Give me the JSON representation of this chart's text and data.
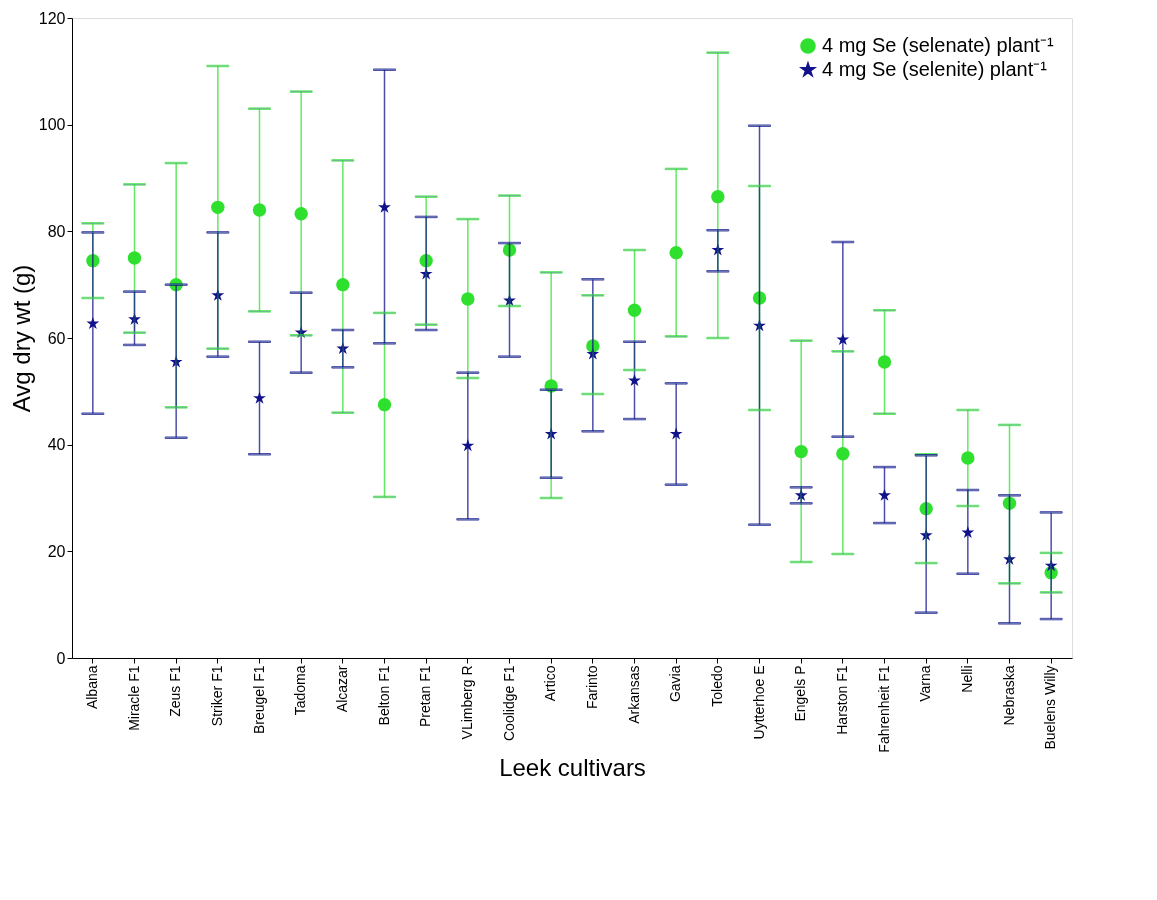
{
  "chart_data": {
    "type": "scatter",
    "xlabel": "Leek cultivars",
    "ylabel": "Avg dry wt (g)",
    "categories": [
      "Albana",
      "Miracle F1",
      "Zeus F1",
      "Striker F1",
      "Breugel F1",
      "Tadoma",
      "Alcazar",
      "Belton F1",
      "Pretan F1",
      "VLimberg R",
      "Coolidge F1",
      "Artico",
      "Farinto",
      "Arkansas",
      "Gavia",
      "Toledo",
      "Uytterhoe E",
      "Engels P",
      "Harston F1",
      "Fahrenheit F1",
      "Varna",
      "Nelli",
      "Nebraska",
      "Buelens Willy"
    ],
    "series": [
      {
        "name": "4 mg Se (selenate) plant⁻¹",
        "color": "#2fe02f",
        "marker": "circle",
        "values": [
          74.5,
          75,
          70,
          84.5,
          84,
          83.3,
          70,
          47.5,
          74.5,
          67.3,
          76.5,
          51,
          58.5,
          65.2,
          76,
          86.5,
          67.5,
          38.7,
          38.3,
          55.5,
          28,
          37.5,
          29,
          16
        ],
        "errors": [
          [
            67.5,
            81.5
          ],
          [
            61,
            88.8
          ],
          [
            47,
            92.8
          ],
          [
            58,
            111
          ],
          [
            65,
            103
          ],
          [
            60.5,
            106.2
          ],
          [
            46,
            93.3
          ],
          [
            30.2,
            64.7
          ],
          [
            62.5,
            86.5
          ],
          [
            52.5,
            82.3
          ],
          [
            66,
            86.7
          ],
          [
            30,
            72.3
          ],
          [
            49.5,
            68
          ],
          [
            54,
            76.5
          ],
          [
            60.3,
            91.7
          ],
          [
            60,
            113.5
          ],
          [
            46.5,
            88.5
          ],
          [
            18,
            59.5
          ],
          [
            19.5,
            57.5
          ],
          [
            45.8,
            65.2
          ],
          [
            17.8,
            38.2
          ],
          [
            28.5,
            46.5
          ],
          [
            14,
            43.7
          ],
          [
            12.3,
            19.7
          ]
        ]
      },
      {
        "name": "4 mg Se (selenite) plant⁻¹",
        "color": "#12128c",
        "marker": "star",
        "values": [
          62.7,
          63.5,
          55.5,
          68,
          48.7,
          61,
          58,
          84.5,
          72,
          39.8,
          67,
          42,
          57,
          52,
          42,
          76.5,
          62.3,
          30.5,
          59.7,
          30.5,
          23,
          23.5,
          18.5,
          17.3
        ],
        "errors": [
          [
            45.8,
            79.8
          ],
          [
            58.7,
            68.7
          ],
          [
            41.3,
            70
          ],
          [
            56.5,
            79.8
          ],
          [
            38.2,
            59.3
          ],
          [
            53.5,
            68.5
          ],
          [
            54.5,
            61.5
          ],
          [
            59,
            110.3
          ],
          [
            61.5,
            82.7
          ],
          [
            26,
            53.5
          ],
          [
            56.5,
            77.8
          ],
          [
            33.8,
            50.3
          ],
          [
            42.5,
            71
          ],
          [
            44.8,
            59.3
          ],
          [
            32.5,
            51.5
          ],
          [
            72.5,
            80.2
          ],
          [
            25,
            99.8
          ],
          [
            29,
            32
          ],
          [
            41.5,
            78
          ],
          [
            25.3,
            35.8
          ],
          [
            8.5,
            38
          ],
          [
            15.8,
            31.5
          ],
          [
            6.5,
            30.5
          ],
          [
            7.3,
            27.3
          ]
        ]
      }
    ],
    "ylim": [
      0,
      120
    ],
    "yticks": [
      0,
      20,
      40,
      60,
      80,
      100,
      120
    ],
    "grid": false,
    "legend": "top right"
  }
}
